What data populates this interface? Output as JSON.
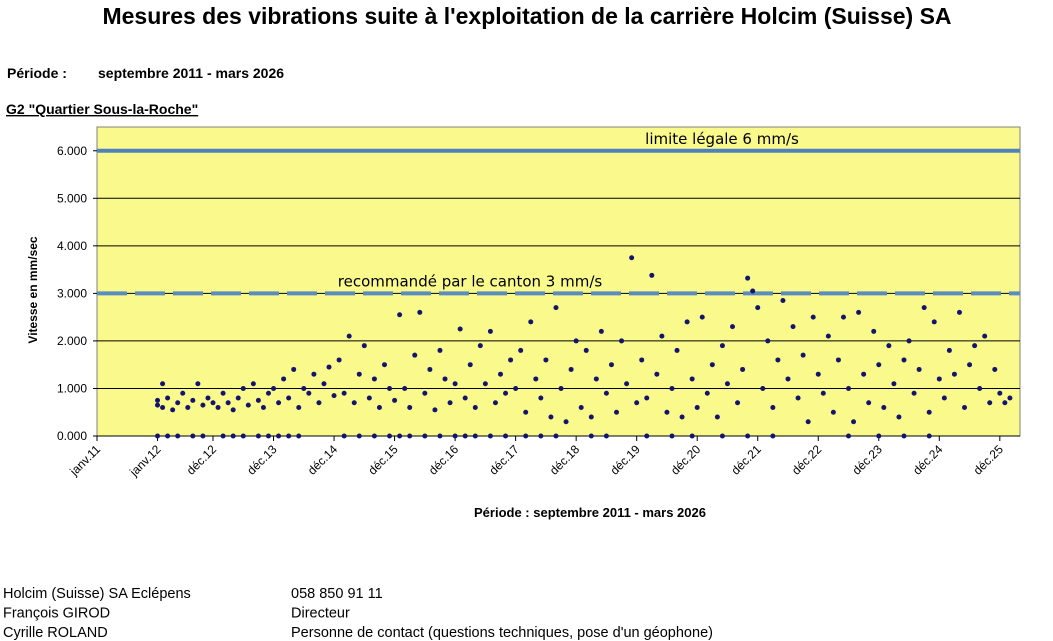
{
  "header": {
    "title": "Mesures des vibrations suite à l'exploitation de la carrière Holcim (Suisse) SA",
    "period_label": "Période :",
    "period": "septembre 2011 - mars 2026",
    "station": "G2 \"Quartier Sous-la-Roche\""
  },
  "chart_data": {
    "type": "scatter",
    "y_label": "Vitesse en mm/sec",
    "x_label": "Période : septembre 2011 - mars 2026",
    "background": "#fafa8c",
    "grid": true,
    "xlim": [
      "2011-01",
      "2026-04"
    ],
    "xticks": [
      {
        "value": "2011-01",
        "label": "janv.11"
      },
      {
        "value": "2012-01",
        "label": "janv.12"
      },
      {
        "value": "2012-12",
        "label": "déc.12"
      },
      {
        "value": "2013-12",
        "label": "déc.13"
      },
      {
        "value": "2014-12",
        "label": "déc.14"
      },
      {
        "value": "2015-12",
        "label": "déc.15"
      },
      {
        "value": "2016-12",
        "label": "déc.16"
      },
      {
        "value": "2017-12",
        "label": "déc.17"
      },
      {
        "value": "2018-12",
        "label": "déc.18"
      },
      {
        "value": "2019-12",
        "label": "déc.19"
      },
      {
        "value": "2020-12",
        "label": "déc.20"
      },
      {
        "value": "2021-12",
        "label": "déc.21"
      },
      {
        "value": "2022-12",
        "label": "déc.22"
      },
      {
        "value": "2023-12",
        "label": "déc.23"
      },
      {
        "value": "2024-12",
        "label": "déc.24"
      },
      {
        "value": "2025-12",
        "label": "déc.25"
      }
    ],
    "ylim": [
      0,
      6.5
    ],
    "yticks": [
      {
        "value": 0,
        "label": "0.000"
      },
      {
        "value": 1,
        "label": "1.000"
      },
      {
        "value": 2,
        "label": "2.000"
      },
      {
        "value": 3,
        "label": "3.000"
      },
      {
        "value": 4,
        "label": "4.000"
      },
      {
        "value": 5,
        "label": "5.000"
      },
      {
        "value": 6,
        "label": "6.000"
      }
    ],
    "reference_lines": [
      {
        "value": 6,
        "label": "limite légale 6 mm/s",
        "style": "solid",
        "color": "#4f81bd"
      },
      {
        "value": 3,
        "label": "recommandé par le canton 3 mm/s",
        "style": "dashed",
        "color": "#5b8cc0"
      }
    ],
    "series": [
      {
        "color": "#14146e",
        "x": [
          "2012-01",
          "2012-01",
          "2012-02",
          "2012-02",
          "2012-03",
          "2012-04",
          "2012-05",
          "2012-06",
          "2012-07",
          "2012-08",
          "2012-09",
          "2012-10",
          "2012-11",
          "2012-12",
          "2012-01",
          "2012-03",
          "2012-05",
          "2012-08",
          "2012-10",
          "2013-01",
          "2013-02",
          "2013-03",
          "2013-04",
          "2013-05",
          "2013-06",
          "2013-07",
          "2013-08",
          "2013-09",
          "2013-10",
          "2013-11",
          "2013-12",
          "2013-02",
          "2013-04",
          "2013-06",
          "2013-09",
          "2013-11",
          "2014-01",
          "2014-02",
          "2014-03",
          "2014-04",
          "2014-05",
          "2014-06",
          "2014-07",
          "2014-08",
          "2014-09",
          "2014-10",
          "2014-11",
          "2014-12",
          "2014-01",
          "2014-03",
          "2014-05",
          "2015-01",
          "2015-02",
          "2015-03",
          "2015-04",
          "2015-05",
          "2015-06",
          "2015-07",
          "2015-08",
          "2015-09",
          "2015-10",
          "2015-11",
          "2015-12",
          "2015-02",
          "2015-05",
          "2015-08",
          "2015-11",
          "2016-01",
          "2016-02",
          "2016-03",
          "2016-04",
          "2016-05",
          "2016-06",
          "2016-07",
          "2016-08",
          "2016-09",
          "2016-10",
          "2016-11",
          "2016-12",
          "2016-01",
          "2016-03",
          "2016-06",
          "2016-09",
          "2016-12",
          "2017-01",
          "2017-02",
          "2017-03",
          "2017-04",
          "2017-05",
          "2017-06",
          "2017-07",
          "2017-08",
          "2017-09",
          "2017-10",
          "2017-11",
          "2017-12",
          "2017-02",
          "2017-04",
          "2017-07",
          "2017-10",
          "2018-01",
          "2018-02",
          "2018-03",
          "2018-04",
          "2018-05",
          "2018-06",
          "2018-07",
          "2018-08",
          "2018-09",
          "2018-10",
          "2018-11",
          "2018-12",
          "2018-02",
          "2018-05",
          "2018-08",
          "2019-01",
          "2019-02",
          "2019-03",
          "2019-04",
          "2019-05",
          "2019-06",
          "2019-07",
          "2019-08",
          "2019-09",
          "2019-10",
          "2019-11",
          "2019-12",
          "2019-03",
          "2019-06",
          "2020-01",
          "2020-02",
          "2020-03",
          "2020-04",
          "2020-05",
          "2020-06",
          "2020-07",
          "2020-08",
          "2020-09",
          "2020-10",
          "2020-11",
          "2020-12",
          "2020-02",
          "2020-07",
          "2020-11",
          "2021-01",
          "2021-02",
          "2021-03",
          "2021-04",
          "2021-05",
          "2021-06",
          "2021-07",
          "2021-08",
          "2021-09",
          "2021-10",
          "2021-11",
          "2021-12",
          "2021-05",
          "2021-10",
          "2022-01",
          "2022-02",
          "2022-03",
          "2022-04",
          "2022-05",
          "2022-06",
          "2022-07",
          "2022-08",
          "2022-09",
          "2022-10",
          "2022-11",
          "2022-12",
          "2022-03",
          "2023-01",
          "2023-02",
          "2023-03",
          "2023-04",
          "2023-05",
          "2023-06",
          "2023-07",
          "2023-08",
          "2023-09",
          "2023-10",
          "2023-11",
          "2023-12",
          "2023-06",
          "2023-12",
          "2024-01",
          "2024-02",
          "2024-03",
          "2024-04",
          "2024-05",
          "2024-06",
          "2024-07",
          "2024-08",
          "2024-09",
          "2024-10",
          "2024-11",
          "2024-12",
          "2024-05",
          "2024-10",
          "2025-01",
          "2025-02",
          "2025-03",
          "2025-04",
          "2025-05",
          "2025-06",
          "2025-07",
          "2025-08",
          "2025-09",
          "2025-10",
          "2025-11",
          "2025-12",
          "2026-01",
          "2026-02"
        ],
        "values": [
          0.75,
          0.65,
          1.1,
          0.6,
          0.8,
          0.55,
          0.7,
          0.9,
          0.6,
          0.75,
          1.1,
          0.65,
          0.8,
          0.7,
          0,
          0,
          0,
          0,
          0,
          0.6,
          0.9,
          0.7,
          0.55,
          0.8,
          1.0,
          0.65,
          1.1,
          0.75,
          0.6,
          0.9,
          1.0,
          0,
          0,
          0,
          0,
          0,
          0.7,
          1.2,
          0.8,
          1.4,
          0.6,
          1.0,
          0.9,
          1.3,
          0.7,
          1.1,
          1.45,
          0.85,
          0,
          0,
          0,
          1.6,
          0.9,
          2.1,
          0.7,
          1.3,
          1.9,
          0.8,
          1.2,
          0.6,
          1.5,
          1.0,
          0.75,
          0,
          0,
          0,
          0,
          2.55,
          1.0,
          0.6,
          1.7,
          2.6,
          0.9,
          1.4,
          0.55,
          1.8,
          1.2,
          0.7,
          1.1,
          0,
          0,
          0,
          0,
          0,
          2.25,
          0.8,
          1.5,
          0.6,
          1.9,
          1.1,
          2.2,
          0.7,
          1.3,
          0.9,
          1.6,
          1.0,
          0,
          0,
          0,
          0,
          1.8,
          0.5,
          2.4,
          1.2,
          0.8,
          1.6,
          0.4,
          2.7,
          1.0,
          0.3,
          1.4,
          2.0,
          0,
          0,
          0,
          0.6,
          1.8,
          0.4,
          1.2,
          2.2,
          0.9,
          1.5,
          0.5,
          2.0,
          1.1,
          3.75,
          0.7,
          0,
          0,
          1.6,
          0.8,
          3.38,
          1.3,
          2.1,
          0.5,
          1.0,
          1.8,
          0.4,
          2.4,
          1.2,
          0.6,
          0,
          0,
          0,
          2.5,
          0.9,
          1.5,
          0.4,
          1.9,
          1.1,
          2.3,
          0.7,
          1.4,
          3.32,
          3.05,
          2.7,
          0,
          0,
          1.0,
          2.0,
          0.6,
          1.6,
          2.85,
          1.2,
          2.3,
          0.8,
          1.7,
          0.3,
          2.5,
          1.3,
          0,
          0.9,
          2.1,
          0.5,
          1.6,
          2.5,
          1.0,
          0.3,
          2.6,
          1.3,
          0.7,
          2.2,
          1.5,
          0,
          0,
          0.6,
          1.9,
          1.1,
          0.4,
          1.6,
          2.0,
          0.9,
          1.4,
          2.7,
          0.5,
          2.4,
          1.2,
          0,
          0,
          0.8,
          1.8,
          1.3,
          2.6,
          0.6,
          1.5,
          1.9,
          1.0,
          2.1,
          0.7,
          1.4,
          0.9,
          0.7,
          0.8
        ]
      }
    ]
  },
  "contacts": [
    [
      "Holcim (Suisse) SA Eclépens",
      "058 850 91 11"
    ],
    [
      "François GIROD",
      "Directeur"
    ],
    [
      "Cyrille ROLAND",
      "Personne de contact (questions techniques, pose d'un géophone)"
    ]
  ]
}
